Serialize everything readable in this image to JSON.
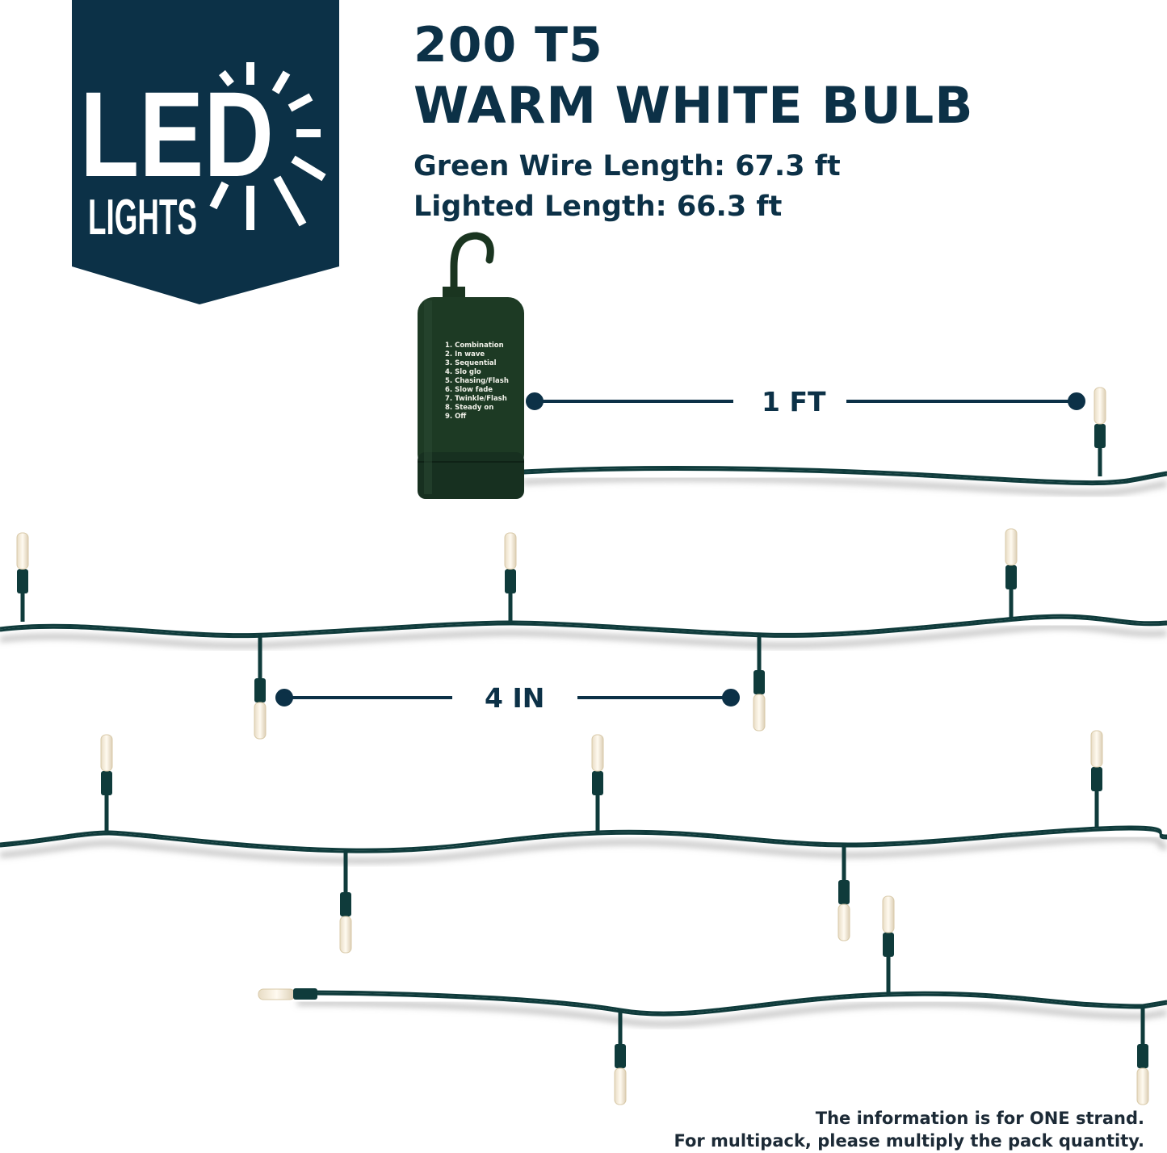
{
  "logo": {
    "text_main": "LED",
    "text_sub": "LIGHTS",
    "icon": "sun-rays-icon",
    "background": "#0c3147"
  },
  "title": {
    "line1": "200 T5",
    "line2": "WARM WHITE BULB"
  },
  "specs": {
    "wire_length": "Green Wire Length: 67.3 ft",
    "lighted_length": "Lighted Length: 66.3 ft"
  },
  "controller": {
    "modes": [
      "1. Combination",
      "2. In wave",
      "3. Sequential",
      "4. Slo glo",
      "5. Chasing/Flash",
      "6. Slow fade",
      "7. Twinkle/Flash",
      "8. Steady on",
      "9. Off"
    ],
    "color": "#1d3a24"
  },
  "dimensions": {
    "lead": "1 FT",
    "spacing": "4 IN"
  },
  "footer": {
    "line1": "The information is for ONE strand.",
    "line2": "For multipack, please multiply the pack quantity."
  },
  "colors": {
    "wire": "#0f3b3b",
    "bulb": "#f6ecd6",
    "navy": "#0c3147"
  }
}
